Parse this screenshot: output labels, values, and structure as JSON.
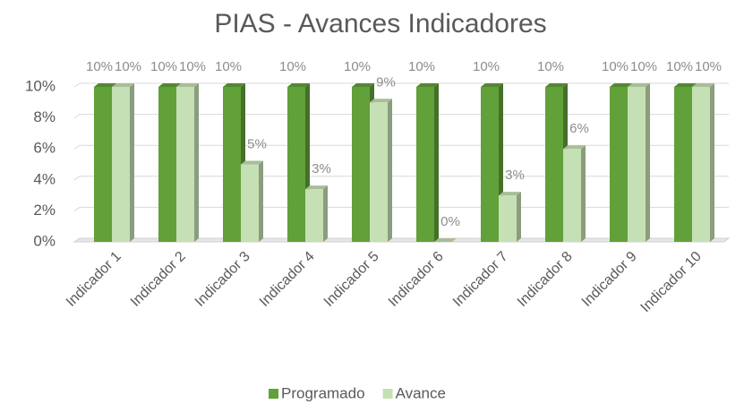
{
  "chart_data": {
    "type": "bar3d",
    "title": "PIAS - Avances Indicadores",
    "categories": [
      "Indicador 1",
      "Indicador 2",
      "Indicador 3",
      "Indicador 4",
      "Indicador 5",
      "Indicador 6",
      "Indicador 7",
      "Indicador 8",
      "Indicador 9",
      "Indicador 10"
    ],
    "series": [
      {
        "name": "Programado",
        "color": "#62a03a",
        "values": [
          10,
          10,
          10,
          10,
          10,
          10,
          10,
          10,
          10,
          10
        ],
        "value_labels": [
          "10%",
          "10%",
          "10%",
          "10%",
          "10%",
          "10%",
          "10%",
          "10%",
          "10%",
          "10%"
        ]
      },
      {
        "name": "Avance",
        "color": "#c5e0b4",
        "values": [
          10,
          10,
          5,
          3.4,
          9,
          0,
          3,
          6,
          10,
          10
        ],
        "value_labels": [
          "10%",
          "10%",
          "5%",
          "3%",
          "9%",
          "0%",
          "3%",
          "6%",
          "10%",
          "10%"
        ]
      }
    ],
    "ylim": [
      0,
      10
    ],
    "yticks": [
      {
        "value": 0,
        "label": "0%"
      },
      {
        "value": 2,
        "label": "2%"
      },
      {
        "value": 4,
        "label": "4%"
      },
      {
        "value": 6,
        "label": "6%"
      },
      {
        "value": 8,
        "label": "8%"
      },
      {
        "value": 10,
        "label": "10%"
      }
    ],
    "grid": true,
    "legend": "bottom"
  }
}
